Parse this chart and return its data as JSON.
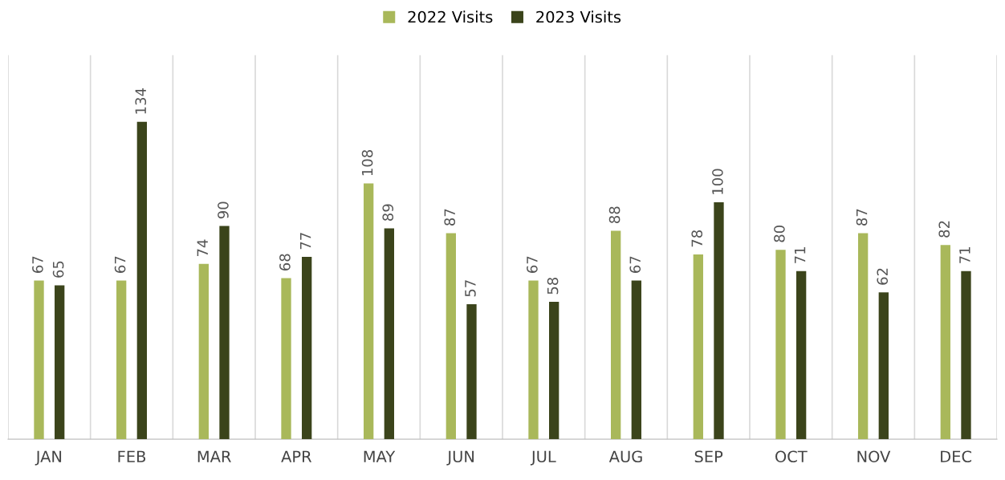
{
  "chart_data": {
    "type": "bar",
    "categories": [
      "JAN",
      "FEB",
      "MAR",
      "APR",
      "MAY",
      "JUN",
      "JUL",
      "AUG",
      "SEP",
      "OCT",
      "NOV",
      "DEC"
    ],
    "series": [
      {
        "name": "2022 Visits",
        "color": "#a9b85a",
        "values": [
          67,
          67,
          74,
          68,
          108,
          87,
          67,
          88,
          78,
          80,
          87,
          82
        ]
      },
      {
        "name": "2023 Visits",
        "color": "#3b441b",
        "values": [
          65,
          134,
          90,
          77,
          89,
          57,
          58,
          67,
          100,
          71,
          62,
          71
        ]
      }
    ],
    "data_labels": true,
    "grid": "x",
    "legend": "top",
    "tick_labels": "x"
  }
}
